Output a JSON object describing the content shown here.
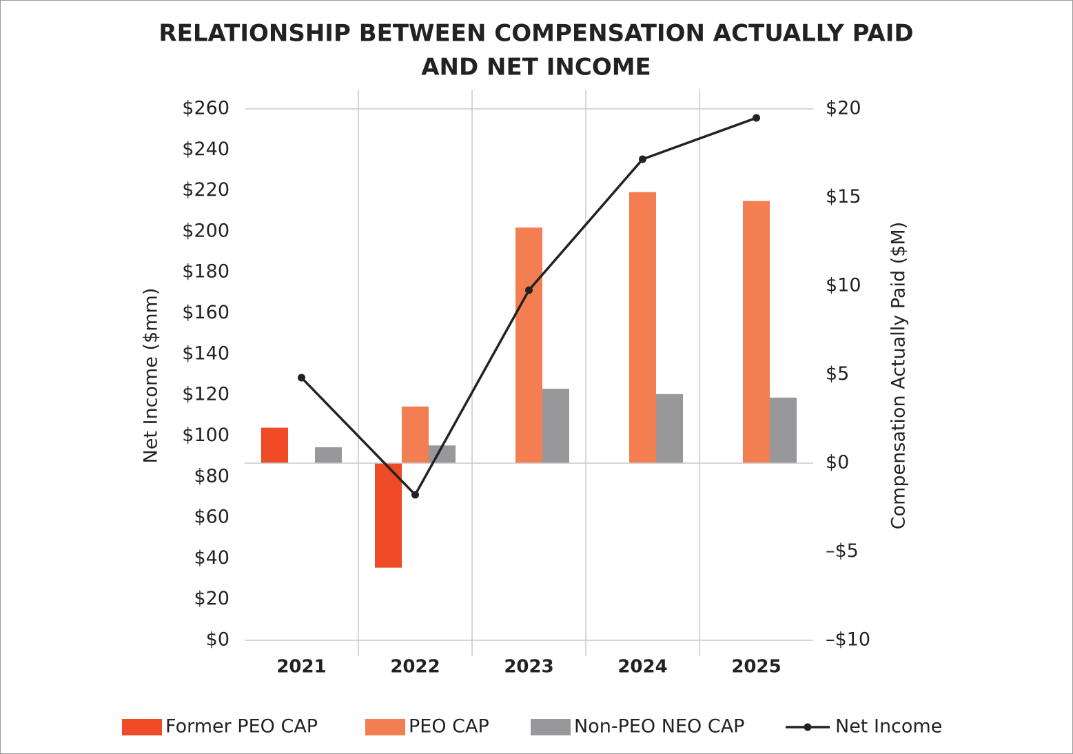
{
  "chart_data": {
    "type": "bar",
    "title": [
      "RELATIONSHIP BETWEEN COMPENSATION ACTUALLY PAID",
      "AND NET INCOME"
    ],
    "y_label": "Net Income ($mm)",
    "y2_label": "Compensation Actually Paid ($M)",
    "categories": [
      "2021",
      "2022",
      "2023",
      "2024",
      "2025"
    ],
    "ylim": [
      0,
      260
    ],
    "yticks": [
      {
        "value": 0,
        "label": "$0"
      },
      {
        "value": 20,
        "label": "$20"
      },
      {
        "value": 40,
        "label": "$40"
      },
      {
        "value": 60,
        "label": "$60"
      },
      {
        "value": 80,
        "label": "$80"
      },
      {
        "value": 100,
        "label": "$100"
      },
      {
        "value": 120,
        "label": "$120"
      },
      {
        "value": 140,
        "label": "$140"
      },
      {
        "value": 160,
        "label": "$160"
      },
      {
        "value": 180,
        "label": "$180"
      },
      {
        "value": 200,
        "label": "$200"
      },
      {
        "value": 220,
        "label": "$220"
      },
      {
        "value": 240,
        "label": "$240"
      },
      {
        "value": 260,
        "label": "$260"
      }
    ],
    "y2lim": [
      -10,
      20
    ],
    "y2ticks": [
      {
        "value": -10,
        "label": "–$10"
      },
      {
        "value": -5,
        "label": "–$5"
      },
      {
        "value": 0,
        "label": "$0"
      },
      {
        "value": 5,
        "label": "$5"
      },
      {
        "value": 10,
        "label": "$10"
      },
      {
        "value": 15,
        "label": "$15"
      },
      {
        "value": 20,
        "label": "$20"
      }
    ],
    "series": [
      {
        "name": "Former PEO CAP",
        "type": "bar",
        "axis": "y2",
        "color": "#ee4b26",
        "values": [
          2.0,
          -5.9,
          null,
          null,
          null
        ]
      },
      {
        "name": "PEO CAP",
        "type": "bar",
        "axis": "y2",
        "color": "#f27e52",
        "values": [
          null,
          3.2,
          13.3,
          15.3,
          14.8
        ]
      },
      {
        "name": "Non-PEO NEO CAP",
        "type": "bar",
        "axis": "y2",
        "color": "#98989b",
        "values": [
          0.9,
          1.0,
          4.2,
          3.9,
          3.7
        ]
      },
      {
        "name": "Net Income",
        "type": "line",
        "axis": "y",
        "color": "#222222",
        "values": [
          128.5,
          71.2,
          171.3,
          235.4,
          255.6
        ]
      }
    ]
  }
}
